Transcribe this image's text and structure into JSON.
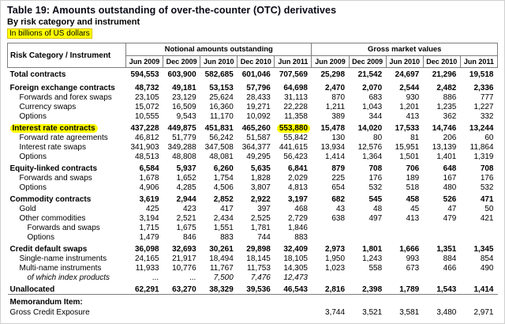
{
  "header": {
    "title": "Table 19: Amounts outstanding of over-the-counter (OTC) derivatives",
    "subtitle": "By risk category and instrument",
    "unit_note": "In billions of US dollars"
  },
  "colors": {
    "highlight": "#ffff00"
  },
  "table": {
    "row_header_label": "Risk Category / Instrument",
    "groups": [
      {
        "label": "Notional amounts outstanding",
        "periods": [
          "Jun 2009",
          "Dec 2009",
          "Jun 2010",
          "Dec 2010",
          "Jun 2011"
        ]
      },
      {
        "label": "Gross market values",
        "periods": [
          "Jun 2009",
          "Dec 2009",
          "Jun 2010",
          "Dec 2010",
          "Jun 2011"
        ]
      }
    ],
    "rows": [
      {
        "label": "Total contracts",
        "style": "total",
        "values": [
          "594,553",
          "603,900",
          "582,685",
          "601,046",
          "707,569",
          "25,298",
          "21,542",
          "24,697",
          "21,296",
          "19,518"
        ]
      },
      {
        "label": "Foreign exchange contracts",
        "style": "category",
        "values": [
          "48,732",
          "49,181",
          "53,153",
          "57,796",
          "64,698",
          "2,470",
          "2,070",
          "2,544",
          "2,482",
          "2,336"
        ]
      },
      {
        "label": "Forwards and forex swaps",
        "style": "item",
        "values": [
          "23,105",
          "23,129",
          "25,624",
          "28,433",
          "31,113",
          "870",
          "683",
          "930",
          "886",
          "777"
        ]
      },
      {
        "label": "Currency swaps",
        "style": "item",
        "values": [
          "15,072",
          "16,509",
          "16,360",
          "19,271",
          "22,228",
          "1,211",
          "1,043",
          "1,201",
          "1,235",
          "1,227"
        ]
      },
      {
        "label": "Options",
        "style": "item",
        "values": [
          "10,555",
          "9,543",
          "11,170",
          "10,092",
          "11,358",
          "389",
          "344",
          "413",
          "362",
          "332"
        ]
      },
      {
        "label": "Interest rate contracts",
        "style": "category",
        "highlight_label": true,
        "highlight_cells": [
          4
        ],
        "values": [
          "437,228",
          "449,875",
          "451,831",
          "465,260",
          "553,880",
          "15,478",
          "14,020",
          "17,533",
          "14,746",
          "13,244"
        ]
      },
      {
        "label": "Forward rate agreements",
        "style": "item",
        "values": [
          "46,812",
          "51,779",
          "56,242",
          "51,587",
          "55,842",
          "130",
          "80",
          "81",
          "206",
          "60"
        ]
      },
      {
        "label": "Interest rate swaps",
        "style": "item",
        "values": [
          "341,903",
          "349,288",
          "347,508",
          "364,377",
          "441,615",
          "13,934",
          "12,576",
          "15,951",
          "13,139",
          "11,864"
        ]
      },
      {
        "label": "Options",
        "style": "item",
        "values": [
          "48,513",
          "48,808",
          "48,081",
          "49,295",
          "56,423",
          "1,414",
          "1,364",
          "1,501",
          "1,401",
          "1,319"
        ]
      },
      {
        "label": "Equity-linked contracts",
        "style": "category",
        "values": [
          "6,584",
          "5,937",
          "6,260",
          "5,635",
          "6,841",
          "879",
          "708",
          "706",
          "648",
          "708"
        ]
      },
      {
        "label": "Forwards and swaps",
        "style": "item",
        "values": [
          "1,678",
          "1,652",
          "1,754",
          "1,828",
          "2,029",
          "225",
          "176",
          "189",
          "167",
          "176"
        ]
      },
      {
        "label": "Options",
        "style": "item",
        "values": [
          "4,906",
          "4,285",
          "4,506",
          "3,807",
          "4,813",
          "654",
          "532",
          "518",
          "480",
          "532"
        ]
      },
      {
        "label": "Commodity contracts",
        "style": "category",
        "values": [
          "3,619",
          "2,944",
          "2,852",
          "2,922",
          "3,197",
          "682",
          "545",
          "458",
          "526",
          "471"
        ]
      },
      {
        "label": "Gold",
        "style": "item",
        "values": [
          "425",
          "423",
          "417",
          "397",
          "468",
          "43",
          "48",
          "45",
          "47",
          "50"
        ]
      },
      {
        "label": "Other commodities",
        "style": "item",
        "values": [
          "3,194",
          "2,521",
          "2,434",
          "2,525",
          "2,729",
          "638",
          "497",
          "413",
          "479",
          "421"
        ]
      },
      {
        "label": "Forwards and swaps",
        "style": "item2",
        "values": [
          "1,715",
          "1,675",
          "1,551",
          "1,781",
          "1,846",
          "",
          "",
          "",
          "",
          ""
        ]
      },
      {
        "label": "Options",
        "style": "item2",
        "values": [
          "1,479",
          "846",
          "883",
          "744",
          "883",
          "",
          "",
          "",
          "",
          ""
        ]
      },
      {
        "label": "Credit default swaps",
        "style": "category",
        "values": [
          "36,098",
          "32,693",
          "30,261",
          "29,898",
          "32,409",
          "2,973",
          "1,801",
          "1,666",
          "1,351",
          "1,345"
        ]
      },
      {
        "label": "Single-name instruments",
        "style": "item",
        "values": [
          "24,165",
          "21,917",
          "18,494",
          "18,145",
          "18,105",
          "1,950",
          "1,243",
          "993",
          "884",
          "854"
        ]
      },
      {
        "label": "Multi-name instruments",
        "style": "item",
        "values": [
          "11,933",
          "10,776",
          "11,767",
          "11,753",
          "14,305",
          "1,023",
          "558",
          "673",
          "466",
          "490"
        ]
      },
      {
        "label": "of which index products",
        "style": "item2-italic",
        "values": [
          "...",
          "...",
          "7,500",
          "7,476",
          "12,473",
          "",
          "",
          "",
          "",
          ""
        ]
      },
      {
        "label": "Unallocated",
        "style": "category",
        "values": [
          "62,291",
          "63,270",
          "38,329",
          "39,536",
          "46,543",
          "2,816",
          "2,398",
          "1,789",
          "1,543",
          "1,414"
        ]
      },
      {
        "label": "Memorandum Item:",
        "style": "memo-header",
        "values": [
          "",
          "",
          "",
          "",
          "",
          "",
          "",
          "",
          "",
          ""
        ]
      },
      {
        "label": "Gross Credit Exposure",
        "style": "memo-item",
        "values": [
          "",
          "",
          "",
          "",
          "",
          "3,744",
          "3,521",
          "3,581",
          "3,480",
          "2,971"
        ]
      }
    ]
  }
}
